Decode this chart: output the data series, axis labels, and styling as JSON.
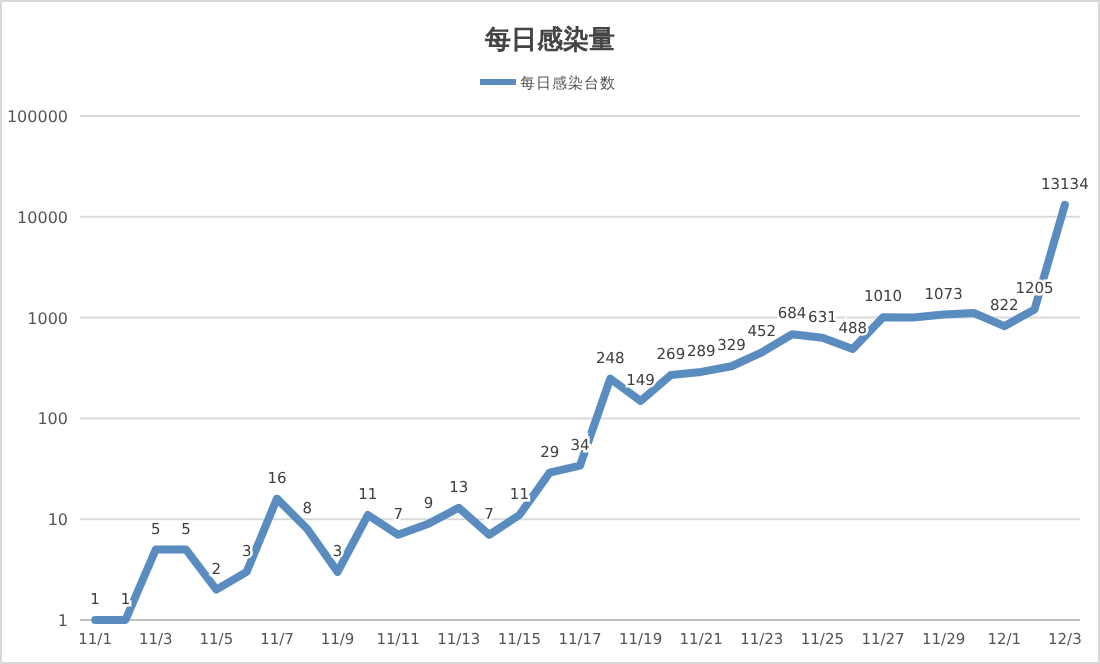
{
  "chart_data": {
    "type": "line",
    "title": "每日感染量",
    "log": "y",
    "ylim": [
      1,
      100000
    ],
    "yticks": [
      1,
      10,
      100,
      1000,
      10000,
      100000
    ],
    "grid": "y",
    "legend": "top",
    "marker": "none",
    "line_style": "solid",
    "categories": [
      "11/1",
      null,
      "11/3",
      null,
      "11/5",
      null,
      "11/7",
      null,
      "11/9",
      null,
      "11/11",
      null,
      "11/13",
      null,
      "11/15",
      null,
      "11/17",
      null,
      "11/19",
      null,
      "11/21",
      null,
      "11/23",
      null,
      "11/25",
      null,
      "11/27",
      null,
      "11/29",
      null,
      "12/1",
      null,
      "12/3"
    ],
    "series": [
      {
        "name": "每日感染台数",
        "color": "#5b8cc0",
        "values": [
          1,
          1,
          5,
          5,
          2,
          3,
          16,
          8,
          3,
          11,
          7,
          9,
          13,
          7,
          11,
          29,
          34,
          248,
          149,
          269,
          289,
          329,
          452,
          684,
          631,
          488,
          1010,
          1000,
          1073,
          1110,
          822,
          1205,
          13134
        ],
        "value_labels": [
          "1",
          "1",
          "5",
          "5",
          "2",
          "3",
          "16",
          "8",
          "3",
          "11",
          "7",
          "9",
          "13",
          "7",
          "11",
          "29",
          "34",
          "248",
          "149",
          "269",
          "289",
          "329",
          "452",
          "684",
          "631",
          "488",
          "1010",
          null,
          "1073",
          null,
          "822",
          "1205",
          "13134"
        ]
      }
    ]
  }
}
